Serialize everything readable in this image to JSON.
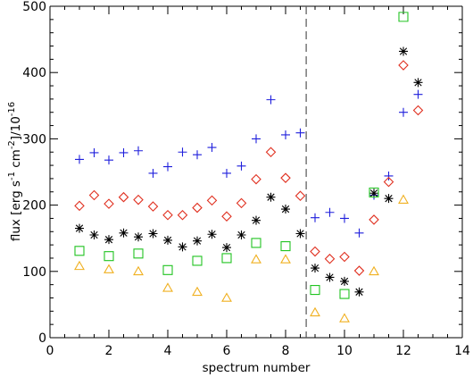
{
  "chart_data": {
    "type": "scatter",
    "title": "",
    "xlabel": "spectrum number",
    "ylabel_parts": {
      "prefix": "flux [erg s",
      "exp1": "-1",
      "mid": " cm",
      "exp2": "-2",
      "suffix": "]/10",
      "exp3": "-16"
    },
    "xlim": [
      0,
      14
    ],
    "ylim": [
      0,
      500
    ],
    "xticks": [
      0,
      2,
      4,
      6,
      8,
      10,
      12,
      14
    ],
    "yticks": [
      0,
      100,
      200,
      300,
      400,
      500
    ],
    "grid": false,
    "legend": "none",
    "vline": {
      "x": 8.7,
      "style": "dashed",
      "color": "#555555"
    },
    "x": [
      1,
      1.5,
      2,
      2.5,
      3,
      3.5,
      4,
      4.5,
      5,
      5.5,
      6,
      6.5,
      7,
      7.5,
      8,
      8.5,
      9,
      9.5,
      10,
      10.5,
      11,
      11.5,
      12,
      12.5
    ],
    "series": [
      {
        "marker": "plus",
        "color": "#1f1fdc",
        "values": [
          269,
          279,
          268,
          279,
          282,
          248,
          258,
          280,
          276,
          287,
          248,
          259,
          300,
          359,
          306,
          309,
          181,
          189,
          180,
          158,
          215,
          244,
          340,
          367
        ]
      },
      {
        "marker": "diamond",
        "color": "#e03020",
        "values": [
          199,
          215,
          202,
          212,
          208,
          198,
          185,
          185,
          196,
          207,
          183,
          203,
          239,
          280,
          241,
          214,
          130,
          119,
          122,
          101,
          178,
          235,
          411,
          343
        ]
      },
      {
        "marker": "asterisk",
        "color": "#000000",
        "values": [
          165,
          155,
          148,
          158,
          152,
          157,
          147,
          137,
          146,
          156,
          136,
          155,
          177,
          212,
          194,
          157,
          105,
          91,
          85,
          69,
          218,
          210,
          432,
          385
        ]
      },
      {
        "marker": "square",
        "color": "#22c422",
        "values": [
          131,
          null,
          123,
          null,
          127,
          null,
          102,
          null,
          116,
          null,
          120,
          null,
          143,
          null,
          138,
          null,
          72,
          null,
          66,
          null,
          219,
          null,
          484,
          null
        ]
      },
      {
        "marker": "triangle",
        "color": "#f0b020",
        "values": [
          108,
          null,
          103,
          null,
          100,
          null,
          75,
          null,
          69,
          null,
          60,
          null,
          118,
          null,
          118,
          null,
          38,
          null,
          29,
          null,
          100,
          null,
          208,
          null
        ]
      }
    ]
  }
}
